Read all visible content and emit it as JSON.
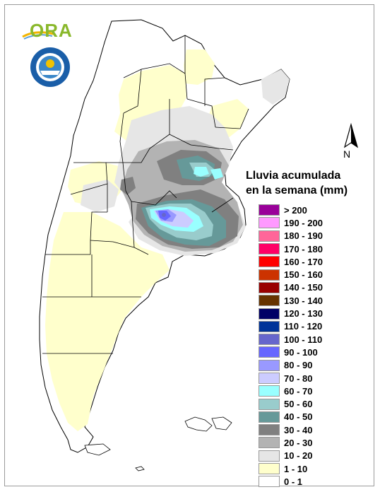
{
  "legend": {
    "title_line1": "Lluvia acumulada",
    "title_line2": "en la semana (mm)",
    "items": [
      {
        "label": "> 200",
        "color": "#990099"
      },
      {
        "label": "190 - 200",
        "color": "#ff99ff"
      },
      {
        "label": "180 - 190",
        "color": "#ff6699"
      },
      {
        "label": "170 - 180",
        "color": "#ff0066"
      },
      {
        "label": "160 - 170",
        "color": "#ff0000"
      },
      {
        "label": "150 - 160",
        "color": "#cc3300"
      },
      {
        "label": "140 - 150",
        "color": "#990000"
      },
      {
        "label": "130 - 140",
        "color": "#663300"
      },
      {
        "label": "120 - 130",
        "color": "#000066"
      },
      {
        "label": "110 - 120",
        "color": "#003399"
      },
      {
        "label": "100 - 110",
        "color": "#6666cc"
      },
      {
        "label": "90 - 100",
        "color": "#6666ff"
      },
      {
        "label": "80 - 90",
        "color": "#9999ff"
      },
      {
        "label": "70 - 80",
        "color": "#ccccff"
      },
      {
        "label": "60 - 70",
        "color": "#99ffff"
      },
      {
        "label": "50 - 60",
        "color": "#99cccc"
      },
      {
        "label": "40 - 50",
        "color": "#669999"
      },
      {
        "label": "30 - 40",
        "color": "#808080"
      },
      {
        "label": "20 - 30",
        "color": "#b3b3b3"
      },
      {
        "label": "10 - 20",
        "color": "#e6e6e6"
      },
      {
        "label": "1 - 10",
        "color": "#ffffcc"
      },
      {
        "label": "0 - 1",
        "color": "#ffffff"
      }
    ]
  },
  "logo": {
    "name": "ORA"
  },
  "north_arrow": {
    "letter": "N"
  }
}
